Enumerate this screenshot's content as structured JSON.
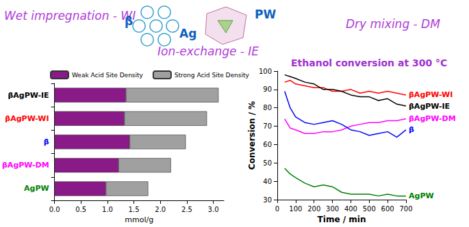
{
  "header": {
    "texts": [
      "Wet impregnation - WI",
      "β",
      "Ag",
      "PW",
      "Dry mixing - DM",
      "Ion-exchange - IE"
    ]
  },
  "chart_data": [
    {
      "type": "bar",
      "orientation": "horizontal",
      "stacked": true,
      "categories": [
        "βAgPW-IE",
        "βAgPW-WI",
        "β",
        "βAgPW-DM",
        "AgPW"
      ],
      "series": [
        {
          "name": "Weak Acid Site Density",
          "color": "#8b1a89",
          "values": [
            1.35,
            1.32,
            1.42,
            1.21,
            0.97
          ]
        },
        {
          "name": "Strong Acid Site Density",
          "color": "#a0a0a0",
          "values": [
            1.75,
            1.56,
            1.06,
            0.99,
            0.8
          ]
        }
      ],
      "xlabel": "mmol/g",
      "xlim": [
        0,
        3.2
      ],
      "xticks": [
        {
          "value": 0,
          "label": "0.0"
        },
        {
          "value": 0.5,
          "label": "0.5"
        },
        {
          "value": 1,
          "label": "1.0"
        },
        {
          "value": 1.5,
          "label": "1.5"
        },
        {
          "value": 2,
          "label": "2.0"
        },
        {
          "value": 2.5,
          "label": "2.5"
        },
        {
          "value": 3,
          "label": "3.0"
        }
      ],
      "grid": false,
      "legend": "top"
    },
    {
      "type": "line",
      "title": "Ethanol conversion at 300 °C",
      "x": [
        40,
        70,
        100,
        150,
        200,
        250,
        300,
        350,
        400,
        450,
        500,
        550,
        600,
        650,
        700
      ],
      "series": [
        {
          "name": "βAgPW-WI",
          "color": "#ff0000",
          "values": [
            94,
            95,
            93,
            92,
            91,
            91,
            89,
            89,
            90,
            88,
            89,
            88,
            89,
            88,
            87
          ]
        },
        {
          "name": "βAgPW-IE",
          "color": "#000000",
          "values": [
            98,
            97,
            96,
            94,
            93,
            90,
            90,
            89,
            87,
            86,
            86,
            84,
            85,
            82,
            81
          ]
        },
        {
          "name": "βAgPW-DM",
          "color": "#ff00ff",
          "values": [
            74,
            69,
            68,
            66,
            66,
            67,
            67,
            68,
            70,
            71,
            72,
            72,
            73,
            73,
            74
          ]
        },
        {
          "name": "β",
          "color": "#0000ff",
          "values": [
            89,
            80,
            75,
            72,
            71,
            72,
            73,
            71,
            68,
            67,
            65,
            66,
            67,
            64,
            68
          ]
        },
        {
          "name": "AgPW",
          "color": "#008000",
          "values": [
            47,
            44,
            42,
            39,
            37,
            38,
            37,
            34,
            33,
            33,
            33,
            32,
            33,
            32,
            32
          ]
        }
      ],
      "xlabel": "Time / min",
      "ylabel": "Conversion / %",
      "xlim": [
        0,
        700
      ],
      "xticks": [
        0,
        100,
        200,
        300,
        400,
        500,
        600,
        700
      ],
      "ylim": [
        30,
        100
      ],
      "yticks": [
        30,
        40,
        50,
        60,
        70,
        80,
        90,
        100
      ],
      "grid": false
    }
  ]
}
